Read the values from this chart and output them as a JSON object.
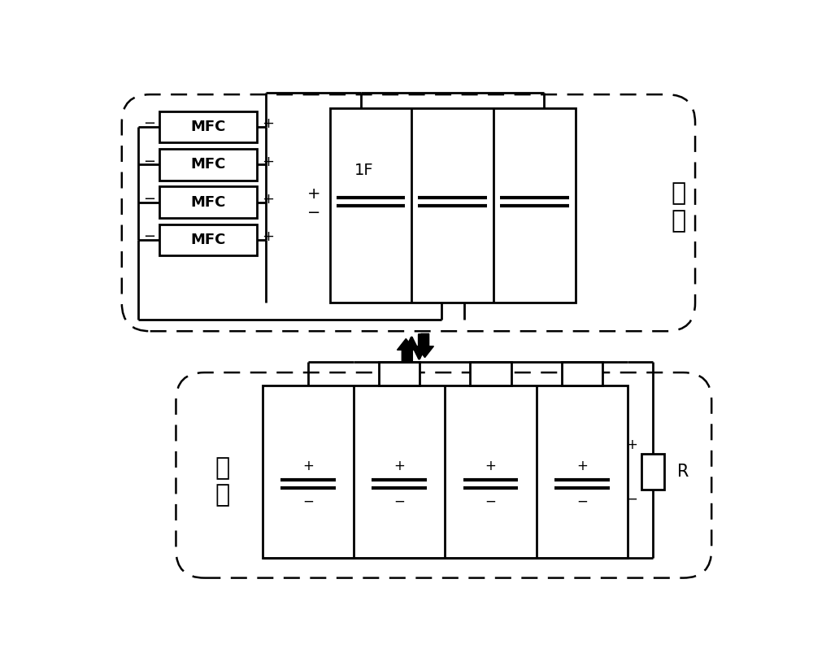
{
  "bg_color": "#ffffff",
  "line_color": "#000000",
  "charging_label": "充\n电",
  "discharging_label": "放\n电",
  "mfc_label": "MFC",
  "cap_label_top": "1F",
  "resistor_label": "R"
}
